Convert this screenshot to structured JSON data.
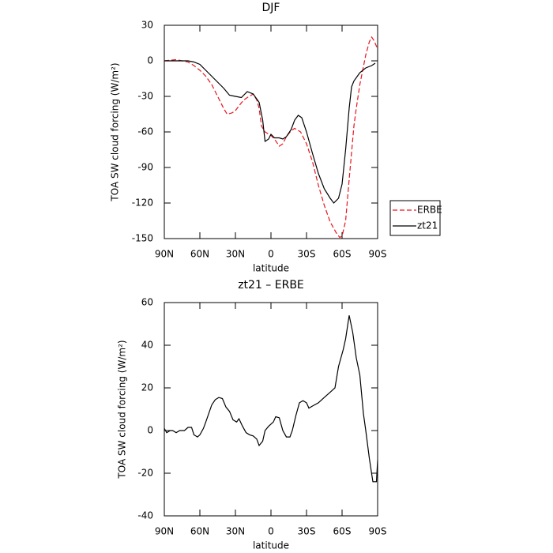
{
  "chart_data": [
    {
      "type": "line",
      "title": "DJF",
      "xlabel": "latitude",
      "ylabel": "TOA SW cloud forcing (W/m²)",
      "xlim": [
        90,
        -90
      ],
      "ylim": [
        -150,
        30
      ],
      "xticks": [
        {
          "value": 90,
          "label": "90N"
        },
        {
          "value": 60,
          "label": "60N"
        },
        {
          "value": 30,
          "label": "30N"
        },
        0,
        {
          "value": -30,
          "label": "30S"
        },
        {
          "value": -60,
          "label": "60S"
        },
        {
          "value": -90,
          "label": "90S"
        }
      ],
      "yticks": [
        30,
        0,
        -30,
        -60,
        -90,
        -120,
        -150
      ],
      "legend": "right",
      "series": [
        {
          "name": "ERBE",
          "color": "#e8141e",
          "dashed": true,
          "x": [
            90,
            80,
            70,
            65,
            60,
            55,
            50,
            45,
            40,
            37,
            33,
            30,
            27,
            23,
            20,
            15,
            12,
            10,
            8,
            5,
            0,
            -3,
            -7,
            -10,
            -13,
            -17,
            -20,
            -25,
            -30,
            -35,
            -40,
            -45,
            -50,
            -55,
            -58,
            -60,
            -63,
            -66,
            -70,
            -72,
            -75,
            -78,
            -80,
            -83,
            -85,
            -87,
            -90
          ],
          "values": [
            0,
            1,
            -1,
            -4,
            -8,
            -13,
            -20,
            -30,
            -40,
            -45,
            -44,
            -42,
            -38,
            -33,
            -31,
            -28,
            -33,
            -40,
            -55,
            -60,
            -63,
            -66,
            -72,
            -70,
            -64,
            -59,
            -57,
            -60,
            -70,
            -85,
            -105,
            -122,
            -136,
            -145,
            -149,
            -148,
            -135,
            -100,
            -55,
            -40,
            -20,
            -5,
            5,
            16,
            20,
            17,
            10
          ]
        },
        {
          "name": "zt21",
          "color": "#000000",
          "dashed": false,
          "x": [
            90,
            80,
            70,
            65,
            60,
            55,
            50,
            45,
            40,
            35,
            30,
            25,
            20,
            15,
            10,
            7,
            5,
            2,
            0,
            -3,
            -7,
            -10,
            -13,
            -17,
            -20,
            -23,
            -26,
            -30,
            -35,
            -40,
            -45,
            -50,
            -53,
            -57,
            -60,
            -63,
            -66,
            -68,
            -70,
            -75,
            -80,
            -85,
            -88
          ],
          "values": [
            0,
            0,
            0,
            -1,
            -3,
            -8,
            -13,
            -18,
            -23,
            -29,
            -30,
            -31,
            -26,
            -28,
            -35,
            -50,
            -68,
            -66,
            -62,
            -65,
            -65,
            -66,
            -64,
            -58,
            -50,
            -46,
            -48,
            -60,
            -78,
            -95,
            -108,
            -116,
            -120,
            -116,
            -104,
            -75,
            -40,
            -22,
            -17,
            -10,
            -6,
            -4,
            -2
          ]
        }
      ]
    },
    {
      "type": "line",
      "title": "zt21 – ERBE",
      "xlabel": "latitude",
      "ylabel": "TOA SW cloud forcing (W/m²)",
      "xlim": [
        90,
        -90
      ],
      "ylim": [
        -40,
        60
      ],
      "xticks": [
        {
          "value": 90,
          "label": "90N"
        },
        {
          "value": 60,
          "label": "60N"
        },
        {
          "value": 30,
          "label": "30N"
        },
        0,
        {
          "value": -30,
          "label": "30S"
        },
        {
          "value": -60,
          "label": "60S"
        },
        {
          "value": -90,
          "label": "90S"
        }
      ],
      "yticks": [
        60,
        40,
        20,
        0,
        -20,
        -40
      ],
      "series": [
        {
          "color": "#000000",
          "dashed": false,
          "x": [
            90,
            88,
            85,
            83,
            80,
            77,
            73,
            70,
            67,
            65,
            62,
            60,
            57,
            55,
            50,
            47,
            44,
            41,
            38,
            35,
            32,
            29,
            27,
            24,
            21,
            18,
            15,
            12,
            10,
            7,
            5,
            2,
            -2,
            -4,
            -7,
            -10,
            -13,
            -16,
            -18,
            -21,
            -24,
            -27,
            -30,
            -32,
            -35,
            -40,
            -45,
            -50,
            -54,
            -57,
            -61,
            -63,
            -66,
            -69,
            -72,
            -75,
            -78,
            -80,
            -83,
            -86,
            -89,
            -90
          ],
          "values": [
            1,
            -1,
            0,
            0,
            -1,
            0,
            0,
            1.5,
            1.5,
            -2,
            -3,
            -2,
            1,
            4,
            12,
            14.5,
            15.5,
            15,
            11,
            9,
            5,
            4,
            5.5,
            2,
            -1,
            -2,
            -2.5,
            -4,
            -7,
            -5,
            0,
            2,
            4,
            6.5,
            6,
            0,
            -3,
            -3,
            0,
            7,
            13,
            14,
            13,
            10.5,
            11.5,
            13,
            15.5,
            18,
            20,
            30,
            38,
            43,
            54,
            46,
            34,
            26,
            8,
            0,
            -13,
            -24,
            -24,
            -14
          ]
        }
      ]
    }
  ]
}
